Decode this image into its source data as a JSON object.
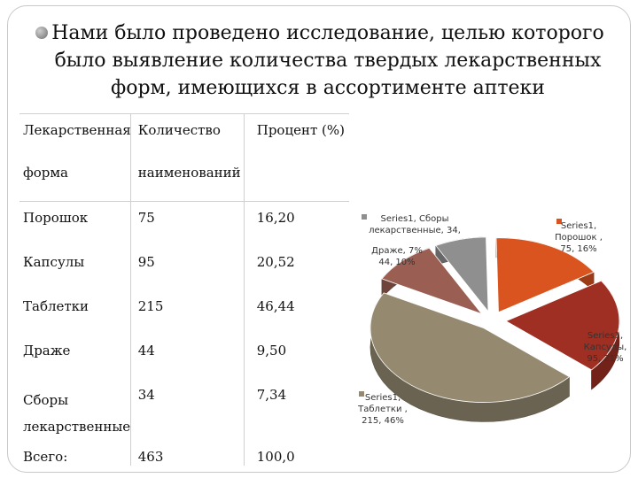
{
  "slide": {
    "title_line1": "Нами было проведено исследование, целью которого",
    "title_line2": "было выявление количества твердых лекарственных",
    "title_line3": "форм, имеющихся в ассортименте аптеки"
  },
  "table": {
    "headers": {
      "col1_line1": "Лекарственная",
      "col1_line2": "форма",
      "col2_line1": "Количество",
      "col2_line2": "наименований",
      "col3": "Процент (%)"
    },
    "rows": [
      {
        "form": "Порошок",
        "count": "75",
        "percent": "16,20"
      },
      {
        "form": "Капсулы",
        "count": "95",
        "percent": "20,52"
      },
      {
        "form": "Таблетки",
        "count": "215",
        "percent": "46,44"
      },
      {
        "form": "Драже",
        "count": "44",
        "percent": "9,50"
      },
      {
        "form": "Сборы лекарственные",
        "count": "34",
        "percent": "7,34"
      }
    ],
    "total": {
      "label": "Всего:",
      "count": "463",
      "percent": "100,0"
    }
  },
  "chart_data": {
    "type": "pie",
    "categories": [
      "Порошок",
      "Капсулы",
      "Таблетки",
      "Драже",
      "Сборы лекарственные"
    ],
    "series": [
      {
        "name": "Series1",
        "values": [
          75,
          95,
          215,
          44,
          34
        ]
      }
    ],
    "percent_labels": [
      "16%",
      "21%",
      "46%",
      "10%",
      "7%"
    ],
    "colors": [
      "#d9541e",
      "#9e2f22",
      "#958970",
      "#9a5f52",
      "#8f8f8f"
    ],
    "data_labels": [
      "Series1, Порошок , 75, 16%",
      "Series1, Капсулы, 95, 21%",
      "Series1, Таблетки , 215, 46%",
      "Series1, Драже, 44, 10%",
      "Series1, Сборы лекарственные, 34, 7%"
    ],
    "legend_markers": [
      "Series1,",
      "Series1,",
      "Series1,"
    ],
    "style": "3D exploded pie"
  }
}
